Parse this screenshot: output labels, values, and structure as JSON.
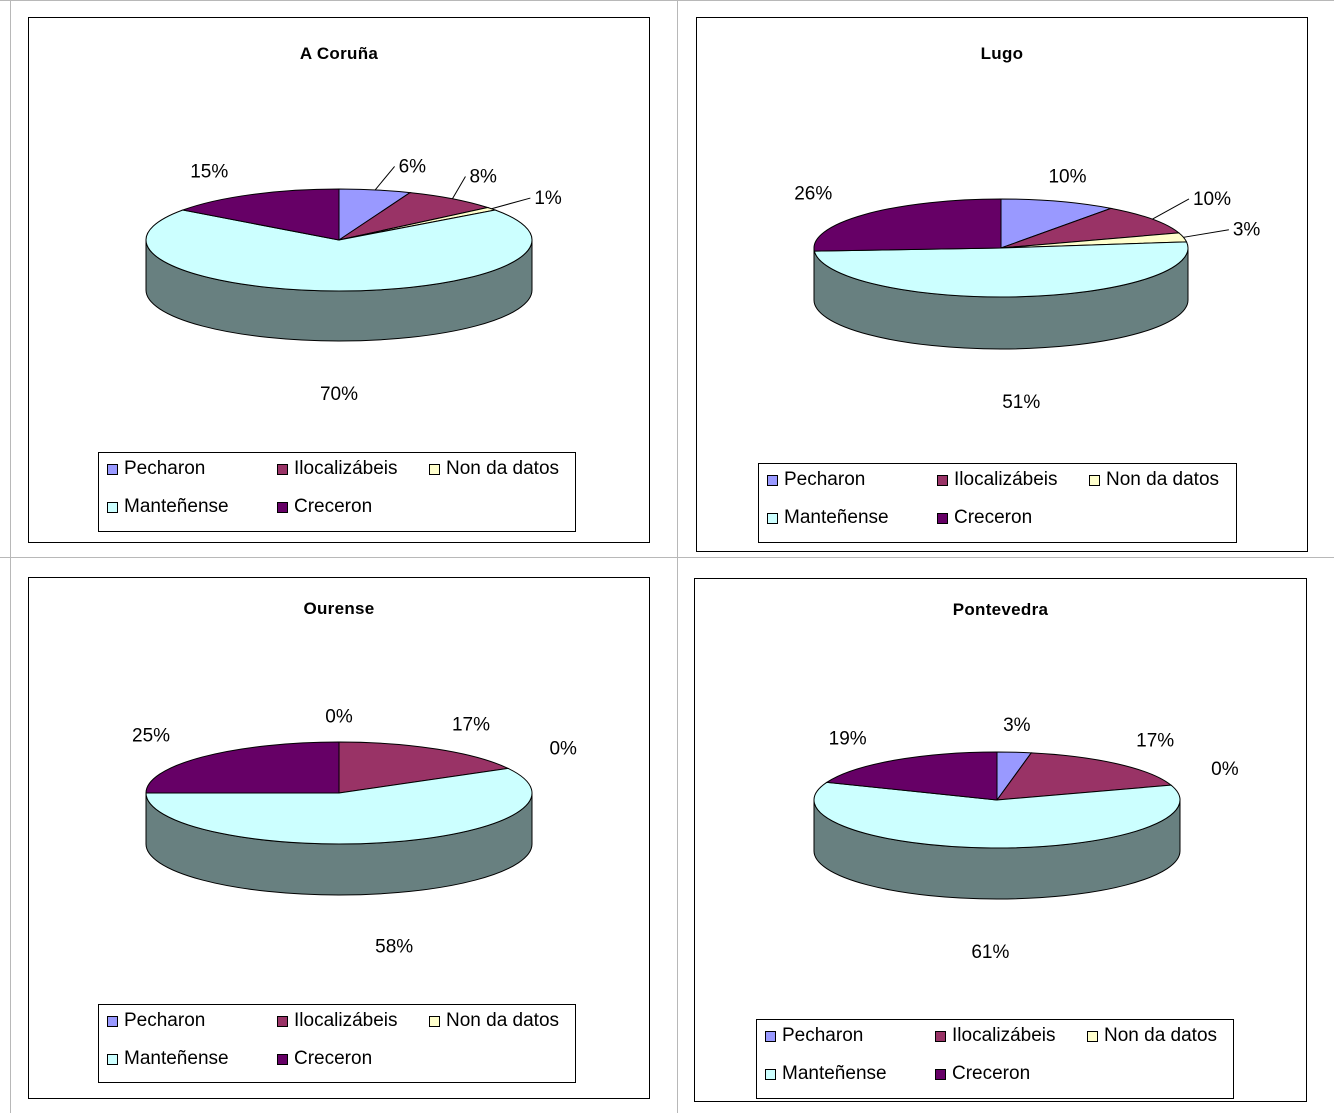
{
  "legend_entries": [
    "Pecharon",
    "Ilocalizábeis",
    "Non da datos",
    "Manteñense",
    "Creceron"
  ],
  "colors": {
    "Pecharon": "#9999ff",
    "Ilocalizábeis": "#993366",
    "Non da datos": "#ffffcc",
    "Manteñense": "#ccffff",
    "Creceron": "#660066",
    "side": "#688080"
  },
  "chart_data": [
    {
      "type": "pie",
      "title": "A Coruña",
      "categories": [
        "Pecharon",
        "Ilocalizábeis",
        "Non da datos",
        "Manteñense",
        "Creceron"
      ],
      "values": [
        6,
        8,
        1,
        70,
        15
      ],
      "labels": [
        "6%",
        "8%",
        "1%",
        "70%",
        "15%"
      ],
      "legend": "bottom"
    },
    {
      "type": "pie",
      "title": "Lugo",
      "categories": [
        "Pecharon",
        "Ilocalizábeis",
        "Non da datos",
        "Manteñense",
        "Creceron"
      ],
      "values": [
        10,
        10,
        3,
        51,
        26
      ],
      "labels": [
        "10%",
        "10%",
        "3%",
        "51%",
        "26%"
      ],
      "legend": "bottom"
    },
    {
      "type": "pie",
      "title": "Ourense",
      "categories": [
        "Pecharon",
        "Ilocalizábeis",
        "Non da datos",
        "Manteñense",
        "Creceron"
      ],
      "values": [
        0,
        17,
        0,
        58,
        25
      ],
      "labels": [
        "0%",
        "17%",
        "0%",
        "58%",
        "25%"
      ],
      "legend": "bottom"
    },
    {
      "type": "pie",
      "title": "Pontevedra",
      "categories": [
        "Pecharon",
        "Ilocalizábeis",
        "Non da datos",
        "Manteñense",
        "Creceron"
      ],
      "values": [
        3,
        17,
        0,
        61,
        19
      ],
      "labels": [
        "3%",
        "17%",
        "0%",
        "61%",
        "19%"
      ],
      "legend": "bottom"
    }
  ]
}
